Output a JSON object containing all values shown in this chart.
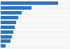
{
  "values": [
    575,
    310,
    210,
    175,
    155,
    140,
    125,
    110,
    95,
    50
  ],
  "bar_color": "#2e75b6",
  "background_color": "#f5f5f5",
  "bar_height": 0.72,
  "xlim": [
    0,
    680
  ],
  "n_bars": 10
}
